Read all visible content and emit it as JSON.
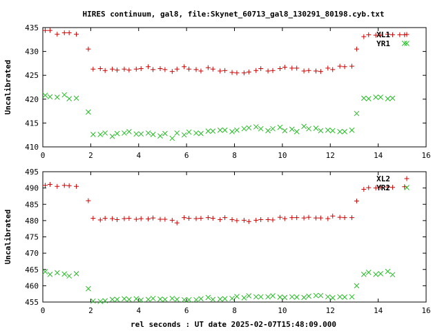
{
  "title": "HIRES continuum, gal8, file:Skynet_60713_gal8_130291_80198.cyb.txt",
  "xlabel": "rel seconds : UT date 2025-02-07T15:48:09.000",
  "colors": {
    "plus": "#cc0000",
    "cross": "#22bb22",
    "axis": "#000000"
  },
  "chart_data": [
    {
      "type": "scatter",
      "ylabel": "Uncalibrated",
      "xlim": [
        0,
        16
      ],
      "ylim": [
        410,
        435
      ],
      "xticks": [
        "0",
        "2",
        "4",
        "6",
        "8",
        "10",
        "12",
        "14",
        "16"
      ],
      "yticks": [
        "410",
        "415",
        "420",
        "425",
        "430",
        "435"
      ],
      "legend": "top-right",
      "series": [
        {
          "name": "XL1",
          "marker": "plus",
          "x": [
            0.1,
            0.3,
            0.6,
            0.9,
            1.1,
            1.4,
            1.9,
            2.1,
            2.4,
            2.6,
            2.9,
            3.1,
            3.4,
            3.6,
            3.9,
            4.1,
            4.4,
            4.6,
            4.9,
            5.1,
            5.4,
            5.6,
            5.9,
            6.1,
            6.4,
            6.6,
            6.9,
            7.1,
            7.4,
            7.6,
            7.9,
            8.1,
            8.4,
            8.6,
            8.9,
            9.1,
            9.4,
            9.6,
            9.9,
            10.1,
            10.4,
            10.6,
            10.9,
            11.1,
            11.4,
            11.6,
            11.9,
            12.1,
            12.4,
            12.6,
            12.9,
            13.1,
            13.4,
            13.6,
            13.9,
            14.1,
            14.4,
            14.6,
            14.9,
            15.1
          ],
          "y": [
            434.4,
            434.4,
            433.6,
            433.9,
            433.9,
            433.6,
            430.5,
            426.3,
            426.4,
            426.0,
            426.3,
            426.1,
            426.3,
            426.1,
            426.3,
            426.4,
            426.8,
            426.2,
            426.4,
            426.2,
            425.8,
            426.3,
            426.8,
            426.3,
            426.2,
            425.9,
            426.6,
            426.3,
            425.9,
            426.0,
            425.6,
            425.5,
            425.5,
            425.7,
            426.0,
            426.4,
            425.9,
            426.0,
            426.4,
            426.7,
            426.5,
            426.5,
            425.9,
            426.0,
            425.9,
            425.8,
            426.5,
            426.2,
            426.9,
            426.8,
            426.9,
            430.5,
            433.1,
            433.5,
            433.4,
            433.4,
            433.6,
            433.5,
            433.5,
            433.5
          ]
        },
        {
          "name": "YR1",
          "marker": "cross",
          "x": [
            0.1,
            0.3,
            0.6,
            0.9,
            1.1,
            1.4,
            1.9,
            2.1,
            2.4,
            2.6,
            2.9,
            3.1,
            3.4,
            3.6,
            3.9,
            4.1,
            4.4,
            4.6,
            4.9,
            5.1,
            5.4,
            5.6,
            5.9,
            6.1,
            6.4,
            6.6,
            6.9,
            7.1,
            7.4,
            7.6,
            7.9,
            8.1,
            8.4,
            8.6,
            8.9,
            9.1,
            9.4,
            9.6,
            9.9,
            10.1,
            10.4,
            10.6,
            10.9,
            11.1,
            11.4,
            11.6,
            11.9,
            12.1,
            12.4,
            12.6,
            12.9,
            13.1,
            13.4,
            13.6,
            13.9,
            14.1,
            14.4,
            14.6,
            15.1
          ],
          "y": [
            420.8,
            420.5,
            420.4,
            420.9,
            420.1,
            420.2,
            417.3,
            412.6,
            412.6,
            412.9,
            412.2,
            412.8,
            412.9,
            413.2,
            412.7,
            412.7,
            412.9,
            412.6,
            412.3,
            412.8,
            411.8,
            412.9,
            412.5,
            413.1,
            412.9,
            412.8,
            413.3,
            413.3,
            413.5,
            413.5,
            413.2,
            413.5,
            413.8,
            414.0,
            414.2,
            413.8,
            413.4,
            413.8,
            414.1,
            413.4,
            413.7,
            413.2,
            414.3,
            413.8,
            413.9,
            413.4,
            413.5,
            413.4,
            413.2,
            413.2,
            413.5,
            417.0,
            420.2,
            420.1,
            420.4,
            420.4,
            420.1,
            420.2,
            431.7
          ]
        }
      ]
    },
    {
      "type": "scatter",
      "ylabel": "Uncalibrated",
      "xlim": [
        0,
        16
      ],
      "ylim": [
        455,
        495
      ],
      "xticks": [
        "0",
        "2",
        "4",
        "6",
        "8",
        "10",
        "12",
        "14",
        "16"
      ],
      "yticks": [
        "455",
        "460",
        "465",
        "470",
        "475",
        "480",
        "485",
        "490",
        "495"
      ],
      "legend": "top-right",
      "series": [
        {
          "name": "XL2",
          "marker": "plus",
          "x": [
            0.1,
            0.3,
            0.6,
            0.9,
            1.1,
            1.4,
            1.9,
            2.1,
            2.4,
            2.6,
            2.9,
            3.1,
            3.4,
            3.6,
            3.9,
            4.1,
            4.4,
            4.6,
            4.9,
            5.1,
            5.4,
            5.6,
            5.9,
            6.1,
            6.4,
            6.6,
            6.9,
            7.1,
            7.4,
            7.6,
            7.9,
            8.1,
            8.4,
            8.6,
            8.9,
            9.1,
            9.4,
            9.6,
            9.9,
            10.1,
            10.4,
            10.6,
            10.9,
            11.1,
            11.4,
            11.6,
            11.9,
            12.1,
            12.4,
            12.6,
            12.9,
            13.1,
            13.4,
            13.6,
            13.9,
            14.1,
            14.4,
            14.6,
            15.1
          ],
          "y": [
            490.8,
            491.1,
            490.5,
            490.8,
            490.7,
            490.5,
            486.1,
            480.7,
            480.2,
            480.7,
            480.6,
            480.3,
            480.6,
            480.7,
            480.4,
            480.6,
            480.5,
            480.8,
            480.4,
            480.4,
            480.1,
            479.3,
            480.9,
            480.7,
            480.6,
            480.7,
            480.9,
            480.7,
            480.3,
            480.9,
            480.3,
            480.0,
            480.1,
            479.7,
            480.1,
            480.3,
            480.3,
            480.2,
            481.0,
            480.6,
            480.9,
            480.9,
            480.8,
            481.0,
            480.8,
            480.8,
            480.6,
            481.4,
            481.0,
            480.9,
            480.9,
            486.0,
            489.6,
            490.1,
            490.0,
            490.3,
            490.3,
            490.2,
            490.4
          ]
        },
        {
          "name": "YR2",
          "marker": "cross",
          "x": [
            0.1,
            0.3,
            0.6,
            0.9,
            1.1,
            1.4,
            1.9,
            2.1,
            2.4,
            2.6,
            2.9,
            3.1,
            3.4,
            3.6,
            3.9,
            4.1,
            4.4,
            4.6,
            4.9,
            5.1,
            5.4,
            5.6,
            5.9,
            6.1,
            6.4,
            6.6,
            6.9,
            7.1,
            7.4,
            7.6,
            7.9,
            8.1,
            8.4,
            8.6,
            8.9,
            9.1,
            9.4,
            9.6,
            9.9,
            10.1,
            10.4,
            10.6,
            10.9,
            11.1,
            11.4,
            11.6,
            11.9,
            12.1,
            12.4,
            12.6,
            12.9,
            13.1,
            13.4,
            13.6,
            13.9,
            14.1,
            14.4,
            14.6
          ],
          "y": [
            464.3,
            463.5,
            464.0,
            463.6,
            463.0,
            463.7,
            459.1,
            455.3,
            455.2,
            455.4,
            455.8,
            455.8,
            456.0,
            455.8,
            456.0,
            455.6,
            455.8,
            456.1,
            455.9,
            455.8,
            456.1,
            455.8,
            455.7,
            455.7,
            455.7,
            456.0,
            456.4,
            455.8,
            455.9,
            456.0,
            456.1,
            456.7,
            456.3,
            456.9,
            456.6,
            456.6,
            456.6,
            456.9,
            456.5,
            456.4,
            456.6,
            456.5,
            456.4,
            456.8,
            457.0,
            457.0,
            456.6,
            456.3,
            456.6,
            456.5,
            456.6,
            460.0,
            463.5,
            464.1,
            463.5,
            463.7,
            464.4,
            463.4
          ]
        }
      ]
    }
  ]
}
